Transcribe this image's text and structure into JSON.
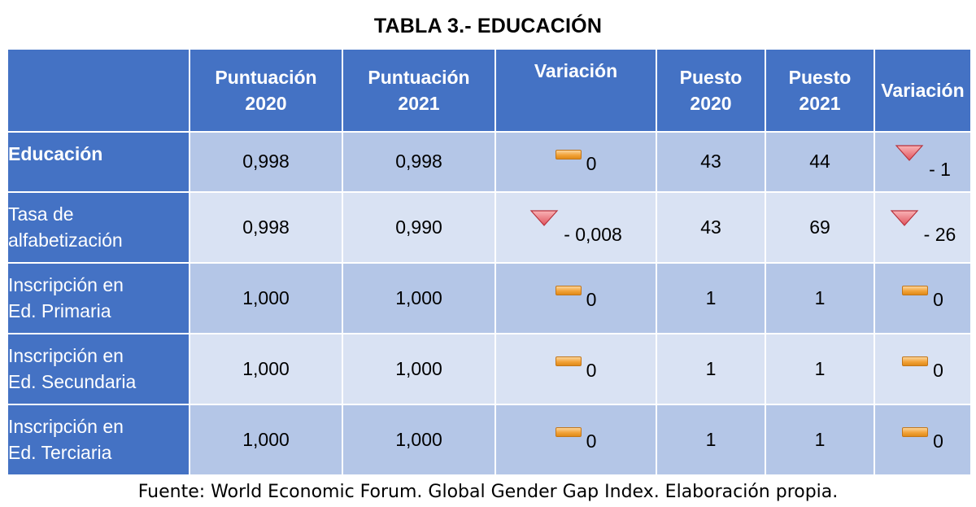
{
  "title": "TABLA 3.- EDUCACIÓN",
  "colors": {
    "header_bg": "#4472c4",
    "row_dark": "#b4c6e7",
    "row_light": "#d9e2f3",
    "indicator_equal": "#f2a33a",
    "indicator_down": "#e0535d"
  },
  "headers": {
    "h1_line1": "Puntuación",
    "h1_line2": "2020",
    "h2_line1": "Puntuación",
    "h2_line2": "2021",
    "h3": "Variación",
    "h4_line1": "Puesto",
    "h4_line2": "2020",
    "h5_line1": "Puesto",
    "h5_line2": "2021",
    "h6": "Variación"
  },
  "rows": [
    {
      "label_line1": "Educación",
      "label_line2": "",
      "score2020": "0,998",
      "score2021": "0,998",
      "score_var": "0",
      "score_var_icon": "equal-bar-icon",
      "rank2020": "43",
      "rank2021": "44",
      "rank_var": "- 1",
      "rank_var_icon": "down-triangle-icon"
    },
    {
      "label_line1": "Tasa de",
      "label_line2": "alfabetización",
      "score2020": "0,998",
      "score2021": "0,990",
      "score_var": "- 0,008",
      "score_var_icon": "down-triangle-icon",
      "rank2020": "43",
      "rank2021": "69",
      "rank_var": "- 26",
      "rank_var_icon": "down-triangle-icon"
    },
    {
      "label_line1": "Inscripción en",
      "label_line2": "Ed. Primaria",
      "score2020": "1,000",
      "score2021": "1,000",
      "score_var": "0",
      "score_var_icon": "equal-bar-icon",
      "rank2020": "1",
      "rank2021": "1",
      "rank_var": "0",
      "rank_var_icon": "equal-bar-icon"
    },
    {
      "label_line1": "Inscripción en",
      "label_line2": "Ed. Secundaria",
      "score2020": "1,000",
      "score2021": "1,000",
      "score_var": "0",
      "score_var_icon": "equal-bar-icon",
      "rank2020": "1",
      "rank2021": "1",
      "rank_var": "0",
      "rank_var_icon": "equal-bar-icon"
    },
    {
      "label_line1": "Inscripción en",
      "label_line2": "Ed. Terciaria",
      "score2020": "1,000",
      "score2021": "1,000",
      "score_var": "0",
      "score_var_icon": "equal-bar-icon",
      "rank2020": "1",
      "rank2021": "1",
      "rank_var": "0",
      "rank_var_icon": "equal-bar-icon"
    }
  ],
  "footer": "Fuente: World Economic Forum. Global Gender Gap Index. Elaboración propia."
}
